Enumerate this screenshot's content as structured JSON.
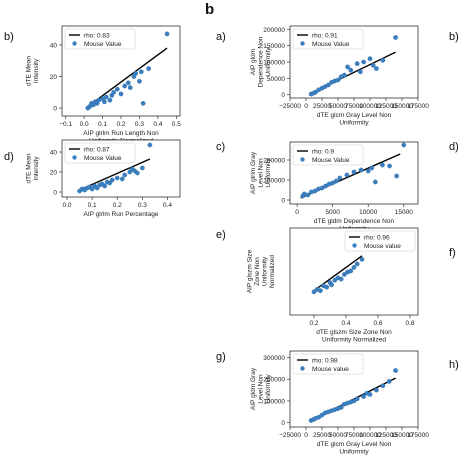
{
  "figure": {
    "section_label": "b"
  },
  "chart_data": [
    {
      "id": "left-b",
      "panel_letter": "b)",
      "type": "scatter",
      "xlabel": "AIP glrlm Run Length Non\nUniformity Normalized",
      "ylabel": "dTE Mean\nIntensity",
      "xlim": [
        -0.12,
        0.52
      ],
      "ylim": [
        -5,
        52
      ],
      "xticks": [
        -0.1,
        0.0,
        0.1,
        0.2,
        0.3,
        0.4,
        0.5
      ],
      "xtick_labels": [
        "−0.1",
        "0.0",
        "0.1",
        "0.2",
        "0.3",
        "0.4",
        "0.5"
      ],
      "yticks": [
        0,
        20,
        40
      ],
      "ytick_labels": [
        "0",
        "20",
        "40"
      ],
      "legend": {
        "position": "top-left",
        "line_label": "rho: 0.83",
        "marker_label": "Mouse Value"
      },
      "fit_line": [
        [
          0.02,
          1
        ],
        [
          0.45,
          38
        ]
      ],
      "series": [
        {
          "name": "Mouse Value",
          "points": [
            [
              0.02,
              0
            ],
            [
              0.03,
              1
            ],
            [
              0.04,
              3
            ],
            [
              0.05,
              2
            ],
            [
              0.06,
              4
            ],
            [
              0.07,
              3
            ],
            [
              0.08,
              5
            ],
            [
              0.1,
              6
            ],
            [
              0.11,
              4
            ],
            [
              0.12,
              7
            ],
            [
              0.14,
              5
            ],
            [
              0.15,
              8
            ],
            [
              0.16,
              10
            ],
            [
              0.18,
              12
            ],
            [
              0.2,
              9
            ],
            [
              0.22,
              14
            ],
            [
              0.24,
              16
            ],
            [
              0.25,
              13
            ],
            [
              0.27,
              20
            ],
            [
              0.28,
              22
            ],
            [
              0.3,
              17
            ],
            [
              0.31,
              23
            ],
            [
              0.32,
              3
            ],
            [
              0.35,
              25
            ],
            [
              0.45,
              47
            ]
          ]
        }
      ]
    },
    {
      "id": "left-d",
      "panel_letter": "d)",
      "type": "scatter",
      "xlabel": "AIP glrlm Run Percentage",
      "ylabel": "dTE Mean\nIntensity",
      "xlim": [
        -0.02,
        0.45
      ],
      "ylim": [
        -5,
        52
      ],
      "xticks": [
        0.0,
        0.1,
        0.2,
        0.3,
        0.4
      ],
      "xtick_labels": [
        "0.0",
        "0.1",
        "0.2",
        "0.3",
        "0.4"
      ],
      "yticks": [
        0,
        20,
        40
      ],
      "ytick_labels": [
        "0",
        "20",
        "40"
      ],
      "legend": {
        "position": "top-left",
        "line_label": "rho: 0.87",
        "marker_label": "Mouse Value"
      },
      "fit_line": [
        [
          0.05,
          2
        ],
        [
          0.33,
          33
        ]
      ],
      "series": [
        {
          "name": "Mouse Value",
          "points": [
            [
              0.05,
              1
            ],
            [
              0.06,
              3
            ],
            [
              0.07,
              2
            ],
            [
              0.08,
              4
            ],
            [
              0.09,
              5
            ],
            [
              0.1,
              3
            ],
            [
              0.11,
              6
            ],
            [
              0.12,
              4
            ],
            [
              0.13,
              7
            ],
            [
              0.14,
              8
            ],
            [
              0.15,
              6
            ],
            [
              0.16,
              10
            ],
            [
              0.17,
              9
            ],
            [
              0.18,
              12
            ],
            [
              0.2,
              14
            ],
            [
              0.22,
              13
            ],
            [
              0.23,
              17
            ],
            [
              0.25,
              20
            ],
            [
              0.26,
              23
            ],
            [
              0.27,
              21
            ],
            [
              0.28,
              19
            ],
            [
              0.3,
              24
            ],
            [
              0.33,
              47
            ]
          ]
        }
      ]
    },
    {
      "id": "right-a",
      "panel_letter": "a)",
      "right_letter": "b)",
      "type": "scatter",
      "xlabel": "dTE glcm Gray Level Non\nUniformity",
      "ylabel": "AIP gldm\nDependence Non\nUniformity",
      "xlim": [
        -25000,
        175000
      ],
      "ylim": [
        -10000,
        210000
      ],
      "xticks": [
        -25000,
        0,
        25000,
        50000,
        75000,
        100000,
        125000,
        150000,
        175000
      ],
      "xtick_labels": [
        "−25000",
        "0",
        "25000",
        "50000",
        "75000",
        "100000",
        "125000",
        "150000",
        "175000"
      ],
      "yticks": [
        0,
        50000,
        100000,
        150000,
        200000
      ],
      "ytick_labels": [
        "0",
        "50000",
        "100000",
        "150000",
        "200000"
      ],
      "legend": {
        "position": "top-left",
        "line_label": "rho: 0.91",
        "marker_label": "Mouse Value"
      },
      "fit_line": [
        [
          8000,
          5000
        ],
        [
          140000,
          130000
        ]
      ],
      "series": [
        {
          "name": "Mouse Value",
          "points": [
            [
              8000,
              2000
            ],
            [
              12000,
              5000
            ],
            [
              15000,
              8000
            ],
            [
              20000,
              15000
            ],
            [
              25000,
              20000
            ],
            [
              30000,
              25000
            ],
            [
              35000,
              30000
            ],
            [
              40000,
              38000
            ],
            [
              45000,
              42000
            ],
            [
              50000,
              45000
            ],
            [
              55000,
              55000
            ],
            [
              60000,
              60000
            ],
            [
              65000,
              85000
            ],
            [
              70000,
              75000
            ],
            [
              80000,
              95000
            ],
            [
              85000,
              70000
            ],
            [
              90000,
              100000
            ],
            [
              100000,
              110000
            ],
            [
              105000,
              90000
            ],
            [
              110000,
              80000
            ],
            [
              120000,
              105000
            ],
            [
              140000,
              175000
            ]
          ]
        }
      ]
    },
    {
      "id": "right-c",
      "panel_letter": "c)",
      "right_letter": "d)",
      "type": "scatter",
      "xlabel": "dTE gldm Dependence Non\nUniformity",
      "ylabel": "AIP glrlm Gray\nLevel Non\nUniformity",
      "xlim": [
        -1000,
        17000
      ],
      "ylim": [
        -20000,
        290000
      ],
      "xticks": [
        0,
        5000,
        10000,
        15000
      ],
      "xtick_labels": [
        "0",
        "5000",
        "10000",
        "15000"
      ],
      "yticks": [
        0,
        100000,
        200000
      ],
      "ytick_labels": [
        "0",
        "100000",
        "200000"
      ],
      "legend": {
        "position": "top-left",
        "line_label": "rho: 0.9",
        "marker_label": "Mouse Value"
      },
      "fit_line": [
        [
          500,
          10000
        ],
        [
          14500,
          230000
        ]
      ],
      "series": [
        {
          "name": "Mouse Value",
          "points": [
            [
              800,
              20000
            ],
            [
              1000,
              30000
            ],
            [
              1500,
              25000
            ],
            [
              2000,
              40000
            ],
            [
              2500,
              45000
            ],
            [
              3000,
              55000
            ],
            [
              3500,
              60000
            ],
            [
              4000,
              70000
            ],
            [
              4500,
              80000
            ],
            [
              5000,
              85000
            ],
            [
              5500,
              95000
            ],
            [
              6000,
              110000
            ],
            [
              7000,
              125000
            ],
            [
              8000,
              140000
            ],
            [
              9000,
              150000
            ],
            [
              10000,
              145000
            ],
            [
              10500,
              160000
            ],
            [
              11000,
              90000
            ],
            [
              12000,
              175000
            ],
            [
              13000,
              170000
            ],
            [
              14000,
              120000
            ],
            [
              15000,
              275000
            ]
          ]
        }
      ]
    },
    {
      "id": "right-e",
      "panel_letter": "e)",
      "right_letter": "f)",
      "type": "scatter",
      "xlabel": "dTE glszm Size Zone Non\nUniformity Normalized",
      "ylabel": "AIP glszm Size\nZone Non\nUniformity\nNormalized",
      "xlim": [
        0.05,
        0.85
      ],
      "ylim": [
        0.05,
        0.8
      ],
      "xticks": [
        0.2,
        0.4,
        0.6,
        0.8
      ],
      "xtick_labels": [
        "0.2",
        "0.4",
        "0.6",
        "0.8"
      ],
      "yticks": [],
      "ytick_labels": [],
      "legend": {
        "position": "top-right",
        "line_label": "rho: 0.96",
        "marker_label": "Mouse value"
      },
      "fit_line": [
        [
          0.2,
          0.26
        ],
        [
          0.5,
          0.56
        ]
      ],
      "series": [
        {
          "name": "Mouse value",
          "points": [
            [
              0.2,
              0.25
            ],
            [
              0.22,
              0.27
            ],
            [
              0.24,
              0.26
            ],
            [
              0.26,
              0.3
            ],
            [
              0.28,
              0.29
            ],
            [
              0.3,
              0.33
            ],
            [
              0.31,
              0.31
            ],
            [
              0.33,
              0.35
            ],
            [
              0.35,
              0.37
            ],
            [
              0.37,
              0.36
            ],
            [
              0.39,
              0.4
            ],
            [
              0.41,
              0.42
            ],
            [
              0.43,
              0.43
            ],
            [
              0.45,
              0.46
            ],
            [
              0.47,
              0.49
            ],
            [
              0.5,
              0.53
            ]
          ]
        }
      ]
    },
    {
      "id": "right-g",
      "panel_letter": "g)",
      "right_letter": "h)",
      "type": "scatter",
      "xlabel": "dTE glcm Gray Level Non\nUniformity",
      "ylabel": "AIP gldm Gray\nLevel Non\nUniformity",
      "xlim": [
        -25000,
        175000
      ],
      "ylim": [
        -20000,
        330000
      ],
      "xticks": [
        -25000,
        0,
        25000,
        50000,
        75000,
        100000,
        125000,
        150000,
        175000
      ],
      "xtick_labels": [
        "−25000",
        "0",
        "25000",
        "50000",
        "75000",
        "100000",
        "125000",
        "150000",
        "175000"
      ],
      "yticks": [
        0,
        100000,
        200000,
        300000
      ],
      "ytick_labels": [
        "0",
        "100000",
        "200000",
        "300000"
      ],
      "legend": {
        "position": "top-left",
        "line_label": "rho: 0.98",
        "marker_label": "Mouse value"
      },
      "fit_line": [
        [
          8000,
          10000
        ],
        [
          140000,
          205000
        ]
      ],
      "series": [
        {
          "name": "Mouse value",
          "points": [
            [
              8000,
              10000
            ],
            [
              12000,
              15000
            ],
            [
              15000,
              20000
            ],
            [
              20000,
              25000
            ],
            [
              25000,
              35000
            ],
            [
              30000,
              45000
            ],
            [
              35000,
              50000
            ],
            [
              40000,
              55000
            ],
            [
              45000,
              60000
            ],
            [
              50000,
              65000
            ],
            [
              55000,
              70000
            ],
            [
              60000,
              85000
            ],
            [
              65000,
              90000
            ],
            [
              70000,
              95000
            ],
            [
              75000,
              100000
            ],
            [
              80000,
              110000
            ],
            [
              90000,
              120000
            ],
            [
              95000,
              135000
            ],
            [
              100000,
              130000
            ],
            [
              110000,
              150000
            ],
            [
              120000,
              170000
            ],
            [
              130000,
              190000
            ],
            [
              140000,
              240000
            ]
          ]
        }
      ]
    }
  ]
}
